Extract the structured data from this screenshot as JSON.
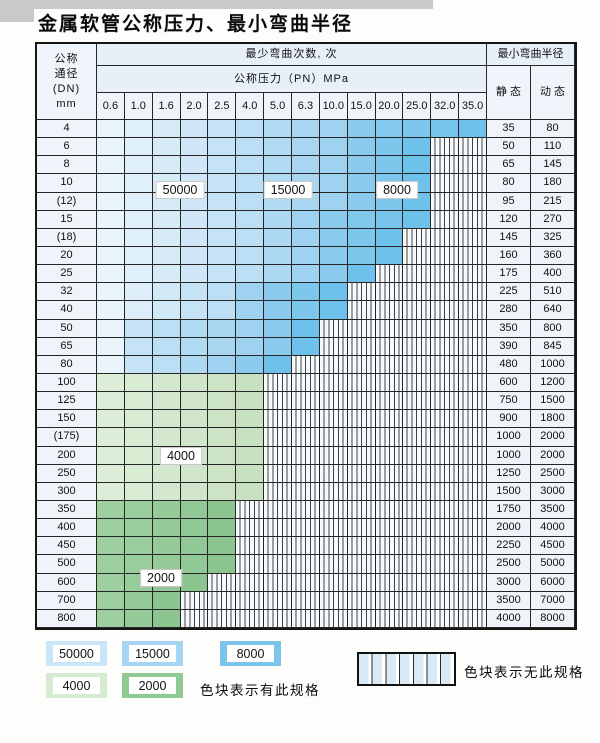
{
  "title": "金属软管公称压力、最小弯曲半径",
  "table": {
    "header": {
      "dn_lines": [
        "公称",
        "通径",
        "(DN)",
        "mm"
      ],
      "bend_times": "最少弯曲次数, 次",
      "pressure": "公称压力（PN）MPa",
      "radius": "最小弯曲半径",
      "static": "静 态",
      "dynamic": "动 态",
      "pressures": [
        "0.6",
        "1.0",
        "1.6",
        "2.0",
        "2.5",
        "4.0",
        "5.0",
        "6.3",
        "10.0",
        "15.0",
        "20.0",
        "25.0",
        "32.0",
        "35.0"
      ]
    },
    "rows": [
      {
        "dn": "4",
        "bands": [
          [
            "b50000",
            5
          ],
          [
            "b15000",
            4
          ],
          [
            "b8000",
            5
          ]
        ],
        "static": "35",
        "dynamic": "80"
      },
      {
        "dn": "6",
        "bands": [
          [
            "b50000",
            5
          ],
          [
            "b15000",
            4
          ],
          [
            "b8000",
            3
          ],
          [
            "none",
            2
          ]
        ],
        "static": "50",
        "dynamic": "110"
      },
      {
        "dn": "8",
        "bands": [
          [
            "b50000",
            5
          ],
          [
            "b15000",
            4
          ],
          [
            "b8000",
            3
          ],
          [
            "none",
            2
          ]
        ],
        "static": "65",
        "dynamic": "145"
      },
      {
        "dn": "10",
        "bands": [
          [
            "b50000",
            5
          ],
          [
            "b15000",
            4
          ],
          [
            "b8000",
            3
          ],
          [
            "none",
            2
          ]
        ],
        "static": "80",
        "dynamic": "180"
      },
      {
        "dn": "(12)",
        "bands": [
          [
            "b50000",
            5
          ],
          [
            "b15000",
            4
          ],
          [
            "b8000",
            3
          ],
          [
            "none",
            2
          ]
        ],
        "static": "95",
        "dynamic": "215"
      },
      {
        "dn": "15",
        "bands": [
          [
            "b50000",
            5
          ],
          [
            "b15000",
            3
          ],
          [
            "b8000",
            4
          ],
          [
            "none",
            2
          ]
        ],
        "static": "120",
        "dynamic": "270"
      },
      {
        "dn": "(18)",
        "bands": [
          [
            "b50000",
            5
          ],
          [
            "b15000",
            3
          ],
          [
            "b8000",
            3
          ],
          [
            "none",
            3
          ]
        ],
        "static": "145",
        "dynamic": "325"
      },
      {
        "dn": "20",
        "bands": [
          [
            "b50000",
            5
          ],
          [
            "b15000",
            3
          ],
          [
            "b8000",
            3
          ],
          [
            "none",
            3
          ]
        ],
        "static": "160",
        "dynamic": "360"
      },
      {
        "dn": "25",
        "bands": [
          [
            "b50000",
            5
          ],
          [
            "b15000",
            3
          ],
          [
            "b8000",
            2
          ],
          [
            "none",
            4
          ]
        ],
        "static": "175",
        "dynamic": "400"
      },
      {
        "dn": "32",
        "bands": [
          [
            "b50000",
            4
          ],
          [
            "b15000",
            2
          ],
          [
            "b8000",
            3
          ],
          [
            "none",
            5
          ]
        ],
        "static": "225",
        "dynamic": "510"
      },
      {
        "dn": "40",
        "bands": [
          [
            "b50000",
            4
          ],
          [
            "b15000",
            2
          ],
          [
            "b8000",
            3
          ],
          [
            "none",
            5
          ]
        ],
        "static": "280",
        "dynamic": "640"
      },
      {
        "dn": "50",
        "bands": [
          [
            "b50000",
            2
          ],
          [
            "b15000",
            4
          ],
          [
            "b8000",
            2
          ],
          [
            "none",
            6
          ]
        ],
        "static": "350",
        "dynamic": "800"
      },
      {
        "dn": "65",
        "bands": [
          [
            "b50000",
            2
          ],
          [
            "b15000",
            4
          ],
          [
            "b8000",
            2
          ],
          [
            "none",
            6
          ]
        ],
        "static": "390",
        "dynamic": "845"
      },
      {
        "dn": "80",
        "bands": [
          [
            "b50000",
            2
          ],
          [
            "b15000",
            3
          ],
          [
            "b8000",
            2
          ],
          [
            "none",
            7
          ]
        ],
        "static": "480",
        "dynamic": "1000"
      },
      {
        "dn": "100",
        "bands": [
          [
            "g4000",
            6
          ],
          [
            "none",
            8
          ]
        ],
        "static": "600",
        "dynamic": "1200"
      },
      {
        "dn": "125",
        "bands": [
          [
            "g4000",
            6
          ],
          [
            "none",
            8
          ]
        ],
        "static": "750",
        "dynamic": "1500"
      },
      {
        "dn": "150",
        "bands": [
          [
            "g4000",
            6
          ],
          [
            "none",
            8
          ]
        ],
        "static": "900",
        "dynamic": "1800"
      },
      {
        "dn": "(175)",
        "bands": [
          [
            "g4000",
            6
          ],
          [
            "none",
            8
          ]
        ],
        "static": "1000",
        "dynamic": "2000"
      },
      {
        "dn": "200",
        "bands": [
          [
            "g4000",
            6
          ],
          [
            "none",
            8
          ]
        ],
        "static": "1000",
        "dynamic": "2000"
      },
      {
        "dn": "250",
        "bands": [
          [
            "g4000",
            6
          ],
          [
            "none",
            8
          ]
        ],
        "static": "1250",
        "dynamic": "2500"
      },
      {
        "dn": "300",
        "bands": [
          [
            "g4000",
            6
          ],
          [
            "none",
            8
          ]
        ],
        "static": "1500",
        "dynamic": "3000"
      },
      {
        "dn": "350",
        "bands": [
          [
            "g2000",
            5
          ],
          [
            "none",
            9
          ]
        ],
        "static": "1750",
        "dynamic": "3500"
      },
      {
        "dn": "400",
        "bands": [
          [
            "g2000",
            5
          ],
          [
            "none",
            9
          ]
        ],
        "static": "2000",
        "dynamic": "4000"
      },
      {
        "dn": "450",
        "bands": [
          [
            "g2000",
            5
          ],
          [
            "none",
            9
          ]
        ],
        "static": "2250",
        "dynamic": "4500"
      },
      {
        "dn": "500",
        "bands": [
          [
            "g2000",
            5
          ],
          [
            "none",
            9
          ]
        ],
        "static": "2500",
        "dynamic": "5000"
      },
      {
        "dn": "600",
        "bands": [
          [
            "g2000",
            4
          ],
          [
            "none",
            10
          ]
        ],
        "static": "3000",
        "dynamic": "6000"
      },
      {
        "dn": "700",
        "bands": [
          [
            "g2000",
            3
          ],
          [
            "none",
            11
          ]
        ],
        "static": "3500",
        "dynamic": "7000"
      },
      {
        "dn": "800",
        "bands": [
          [
            "g2000",
            3
          ],
          [
            "none",
            11
          ]
        ],
        "static": "4000",
        "dynamic": "8000"
      }
    ]
  },
  "overlay_labels": [
    "50000",
    "15000",
    "8000",
    "4000",
    "2000"
  ],
  "legend": {
    "items": [
      {
        "label": "50000",
        "band": "b50000"
      },
      {
        "label": "15000",
        "band": "b15000"
      },
      {
        "label": "8000",
        "band": "b8000"
      },
      {
        "label": "4000",
        "band": "g4000"
      },
      {
        "label": "2000",
        "band": "g2000"
      }
    ],
    "has_spec": "色块表示有此规格",
    "no_spec": "色块表示无此规格"
  },
  "colors": {
    "b50000": {
      "from": "#e9f4fb",
      "to": "#c6e3f5",
      "swatch": "#cbe5f8"
    },
    "b15000": {
      "from": "#bbdff4",
      "to": "#9ed2f0",
      "swatch": "#a5d5f2"
    },
    "b8000": {
      "from": "#8bcbee",
      "to": "#6ec1ea",
      "swatch": "#7cc4ec"
    },
    "g4000": {
      "from": "#dcedd8",
      "to": "#c8e1c1",
      "swatch": "#d6ebd2"
    },
    "g2000": {
      "from": "#9ecf a1",
      "to": "#8dc591",
      "swatch": "#8fc994"
    }
  }
}
